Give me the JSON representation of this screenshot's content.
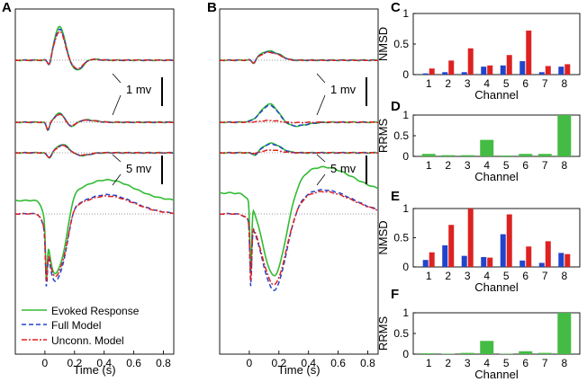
{
  "panels": {
    "A": {
      "label": "A"
    },
    "B": {
      "label": "B"
    },
    "C": {
      "label": "C"
    },
    "D": {
      "label": "D"
    },
    "E": {
      "label": "E"
    },
    "F": {
      "label": "F"
    }
  },
  "colors": {
    "evoked": "#33bb33",
    "full": "#2244cc",
    "unconn": "#dd2222",
    "rrms_bar": "#44bb44"
  },
  "chart_data": [
    {
      "type": "line",
      "panel": "A",
      "xlabel": "Time (s)",
      "xticks": [
        0,
        0.2,
        0.4,
        0.6,
        0.8
      ],
      "xlim": [
        -0.2,
        0.87
      ],
      "legend": [
        "Evoked Response",
        "Full Model",
        "Unconn. Model"
      ],
      "scale_bars": [
        {
          "label": "1 mv"
        },
        {
          "label": "5 mv"
        }
      ],
      "traces": [
        "channel-1",
        "channel-2",
        "channel-3",
        "channel-4"
      ]
    },
    {
      "type": "line",
      "panel": "B",
      "xlabel": "Time (s)",
      "xticks": [
        0,
        0.2,
        0.4,
        0.6,
        0.8
      ],
      "xlim": [
        -0.2,
        0.87
      ],
      "scale_bars": [
        {
          "label": "1 mv"
        },
        {
          "label": "5 mv"
        }
      ],
      "traces": [
        "channel-1",
        "channel-2",
        "channel-3",
        "channel-4"
      ]
    },
    {
      "type": "bar",
      "panel": "C",
      "ylabel": "NMSD",
      "xlabel": "Channel",
      "categories": [
        "1",
        "2",
        "3",
        "4",
        "5",
        "6",
        "7",
        "8"
      ],
      "ylim": [
        0,
        1
      ],
      "yticks": [
        "0",
        "0.5",
        "1"
      ],
      "series": [
        {
          "name": "Full Model",
          "values": [
            0.02,
            0.04,
            0.04,
            0.13,
            0.15,
            0.22,
            0.04,
            0.13
          ]
        },
        {
          "name": "Unconn. Model",
          "values": [
            0.1,
            0.23,
            0.43,
            0.15,
            0.32,
            0.72,
            0.14,
            0.17
          ]
        }
      ]
    },
    {
      "type": "bar",
      "panel": "D",
      "ylabel": "RRMS",
      "xlabel": "Channel",
      "categories": [
        "1",
        "2",
        "3",
        "4",
        "5",
        "6",
        "7",
        "8"
      ],
      "ylim": [
        0,
        1
      ],
      "yticks": [
        "0",
        "0.5",
        "1"
      ],
      "series": [
        {
          "name": "RRMS",
          "values": [
            0.06,
            0.03,
            0.03,
            0.4,
            0.02,
            0.06,
            0.06,
            1.0
          ]
        }
      ]
    },
    {
      "type": "bar",
      "panel": "E",
      "ylabel": "NMSD",
      "xlabel": "Channel",
      "categories": [
        "1",
        "2",
        "3",
        "4",
        "5",
        "6",
        "7",
        "8"
      ],
      "ylim": [
        0,
        1
      ],
      "yticks": [
        "0",
        "0.5",
        "1"
      ],
      "series": [
        {
          "name": "Full Model",
          "values": [
            0.12,
            0.37,
            0.19,
            0.17,
            0.56,
            0.11,
            0.07,
            0.24
          ]
        },
        {
          "name": "Unconn. Model",
          "values": [
            0.25,
            0.72,
            1.0,
            0.16,
            0.9,
            0.35,
            0.44,
            0.22
          ]
        }
      ]
    },
    {
      "type": "bar",
      "panel": "F",
      "ylabel": "RRMS",
      "xlabel": "Channel",
      "categories": [
        "1",
        "2",
        "3",
        "4",
        "5",
        "6",
        "7",
        "8"
      ],
      "ylim": [
        0,
        1
      ],
      "yticks": [
        "0",
        "0.5",
        "1"
      ],
      "series": [
        {
          "name": "RRMS",
          "values": [
            0.02,
            0.01,
            0.03,
            0.32,
            0.01,
            0.07,
            0.03,
            1.0
          ]
        }
      ]
    }
  ]
}
